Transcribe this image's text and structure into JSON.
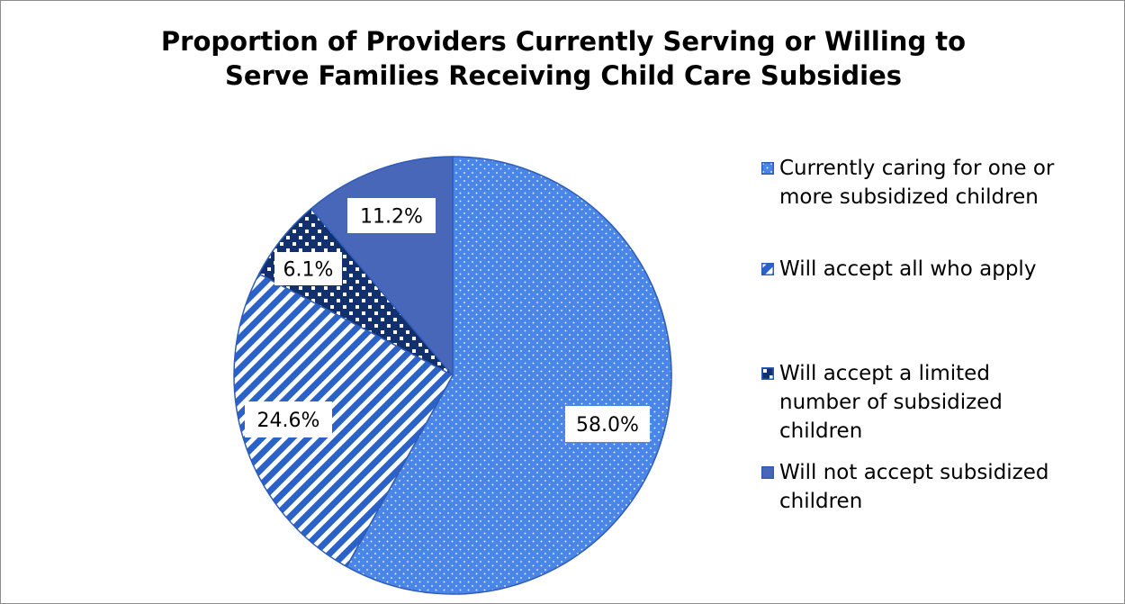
{
  "chart_data": {
    "type": "pie",
    "title_lines": [
      "Proportion of Providers Currently Serving or Willing to",
      "Serve Families Receiving Child Care Subsidies"
    ],
    "slices": [
      {
        "label_lines": [
          "Currently caring for one or",
          "more subsidized children"
        ],
        "value": 58.0,
        "data_label": "58.0%",
        "pattern": "dots",
        "color": "#4A86E8",
        "pattern_color": "#ffffff"
      },
      {
        "label_lines": [
          "Will accept all who apply"
        ],
        "value": 24.6,
        "data_label": "24.6%",
        "pattern": "diagonal-stripes",
        "color": "#2A62C8",
        "pattern_color": "#ffffff"
      },
      {
        "label_lines": [
          "Will accept a limited",
          "number of subsidized",
          "children"
        ],
        "value": 6.1,
        "data_label": "6.1%",
        "pattern": "checker",
        "color": "#13306E",
        "pattern_color": "#ffffff"
      },
      {
        "label_lines": [
          "Will not accept subsidized",
          "children"
        ],
        "value": 11.2,
        "data_label": "11.2%",
        "pattern": "solid",
        "color": "#4867B8",
        "pattern_color": "#4867B8"
      }
    ],
    "start_angle": "top",
    "direction": "clockwise",
    "legend_position": "right",
    "outline_color": "#2E5CB8"
  }
}
